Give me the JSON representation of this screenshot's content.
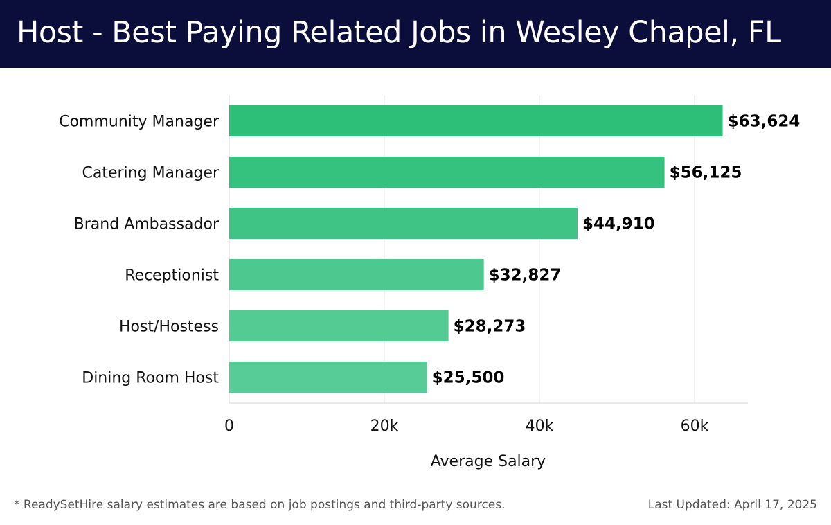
{
  "title": "Host - Best Paying Related Jobs in Wesley Chapel, FL",
  "footer": {
    "note": "* ReadySetHire salary estimates are based on job postings and third-party sources.",
    "updated": "Last Updated: April 17, 2025"
  },
  "colors": {
    "header_bg": "#0b0d3a",
    "bar_colors": [
      "#2dbe78",
      "#34c27e",
      "#40c486",
      "#4dc88f",
      "#55cb94",
      "#58cc96"
    ]
  },
  "chart_data": {
    "type": "bar",
    "orientation": "horizontal",
    "categories": [
      "Community Manager",
      "Catering Manager",
      "Brand Ambassador",
      "Receptionist",
      "Host/Hostess",
      "Dining Room Host"
    ],
    "values": [
      63624,
      56125,
      44910,
      32827,
      28273,
      25500
    ],
    "value_labels": [
      "$63,624",
      "$56,125",
      "$44,910",
      "$32,827",
      "$28,273",
      "$25,500"
    ],
    "xlabel": "Average Salary",
    "xlim": [
      0,
      67000
    ],
    "xticks": [
      0,
      20000,
      40000,
      60000
    ],
    "xtick_labels": [
      "0",
      "20k",
      "40k",
      "60k"
    ],
    "grid": true
  }
}
